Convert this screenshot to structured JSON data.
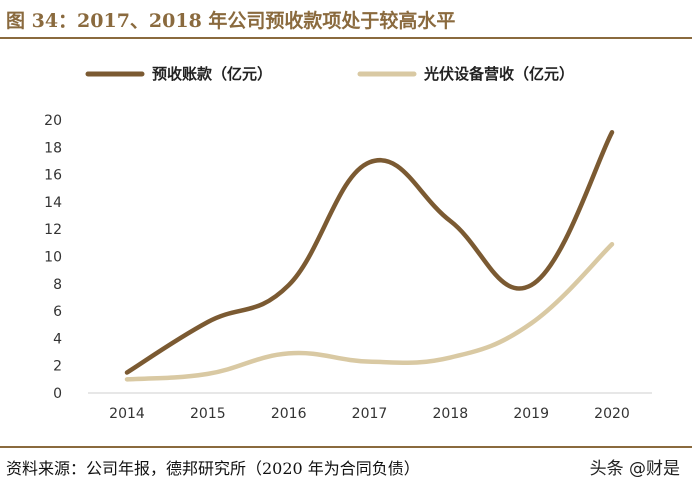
{
  "header": {
    "title": "图 34：2017、2018 年公司预收款项处于较高水平"
  },
  "footer": {
    "source": "资料来源：公司年报，德邦研究所（2020 年为合同负债）",
    "watermark": "头条 @财是"
  },
  "chart_data": {
    "type": "line",
    "x": [
      "2014",
      "2015",
      "2016",
      "2017",
      "2018",
      "2019",
      "2020"
    ],
    "series": [
      {
        "name": "预收账款（亿元）",
        "color": "#7b5a32",
        "values": [
          1.5,
          5.2,
          7.9,
          16.9,
          12.6,
          7.9,
          19.1
        ]
      },
      {
        "name": "光伏设备营收（亿元）",
        "color": "#d9c9a3",
        "values": [
          1.0,
          1.4,
          2.9,
          2.3,
          2.6,
          5.1,
          10.9
        ]
      }
    ],
    "yticks": [
      "0",
      "2",
      "4",
      "6",
      "8",
      "10",
      "12",
      "14",
      "16",
      "18",
      "20"
    ],
    "ylim": [
      0,
      20
    ],
    "legend": "top",
    "grid": false
  }
}
